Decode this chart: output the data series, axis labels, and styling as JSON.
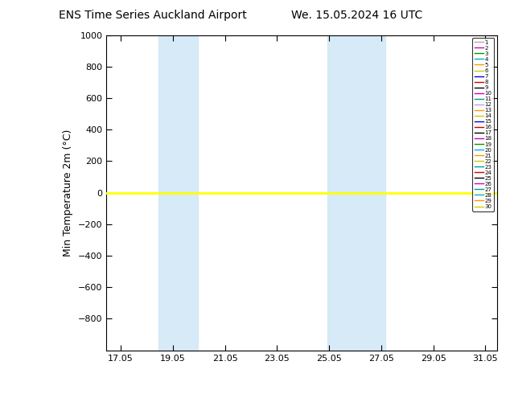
{
  "title_left": "ENS Time Series Auckland Airport",
  "title_right": "We. 15.05.2024 16 UTC",
  "ylabel": "Min Temperature 2m (°C)",
  "ylim_top": -1000,
  "ylim_bottom": 1000,
  "yticks": [
    -800,
    -600,
    -400,
    -200,
    0,
    200,
    400,
    600,
    800,
    1000
  ],
  "xtick_labels": [
    "17.05",
    "19.05",
    "21.05",
    "23.05",
    "25.05",
    "27.05",
    "29.05",
    "31.05"
  ],
  "xtick_positions": [
    17.05,
    19.05,
    21.05,
    23.05,
    25.05,
    27.05,
    29.05,
    31.05
  ],
  "xlim": [
    16.5,
    31.5
  ],
  "shaded_regions": [
    {
      "xmin": 18.5,
      "xmax": 20.0
    },
    {
      "xmin": 25.0,
      "xmax": 27.2
    }
  ],
  "shade_color": "#d6eaf8",
  "line_y_value": 0,
  "line_color": "#ffff00",
  "line_width": 2.0,
  "ensemble_colors": [
    "#aaaaaa",
    "#cc00cc",
    "#009900",
    "#00aacc",
    "#ff9900",
    "#cccc00",
    "#0000cc",
    "#cc0000",
    "#000000",
    "#cc00cc",
    "#009999",
    "#aaaacc",
    "#ff9900",
    "#cccc00",
    "#0000cc",
    "#cc0000",
    "#000000",
    "#cc00cc",
    "#009900",
    "#00aaff",
    "#ff9900",
    "#cccc00",
    "#009999",
    "#cc0000",
    "#000000",
    "#cc00cc",
    "#009999",
    "#00aaff",
    "#ff9900",
    "#cccc00"
  ],
  "n_members": 30,
  "background_color": "#ffffff",
  "figsize": [
    6.34,
    4.9
  ],
  "dpi": 100
}
